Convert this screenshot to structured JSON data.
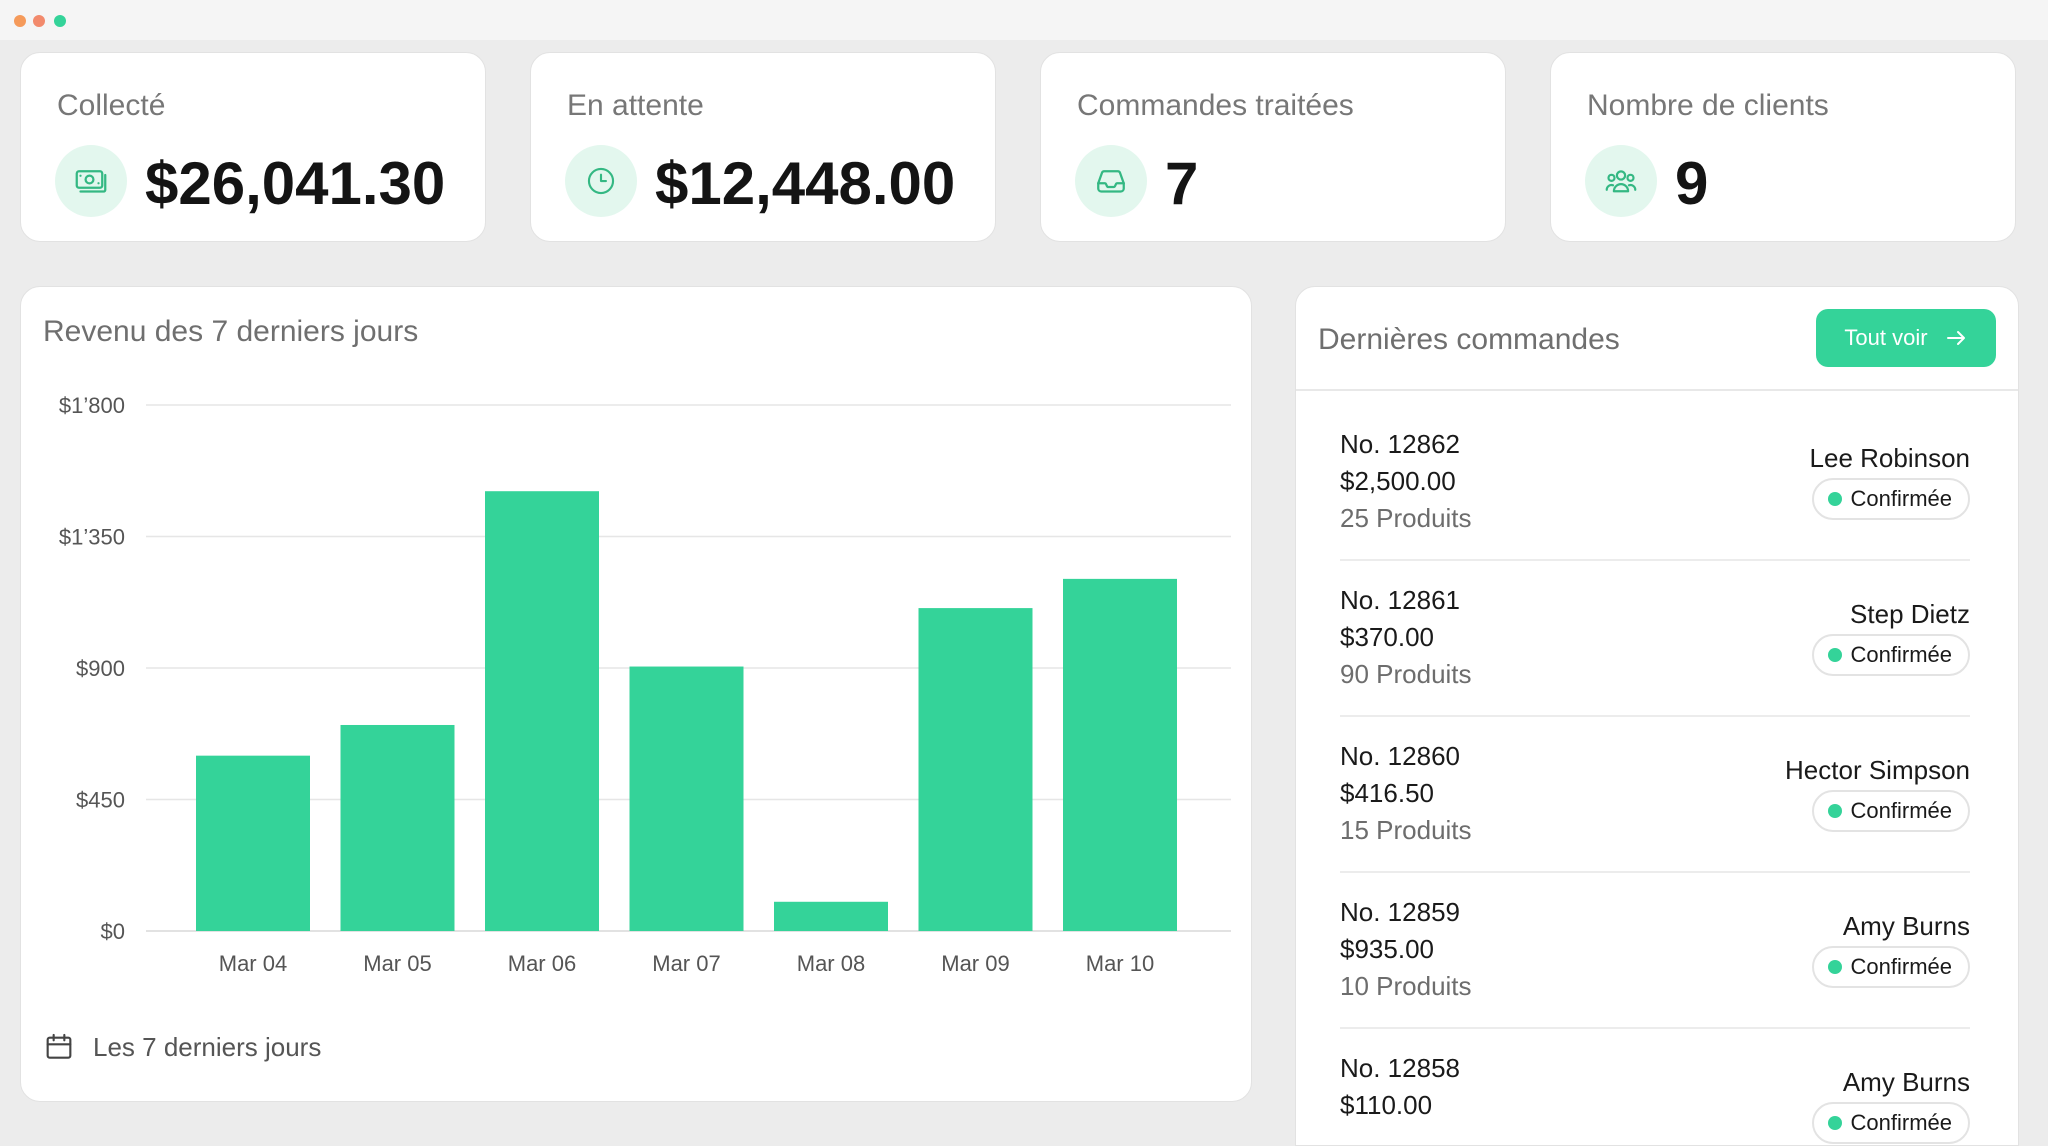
{
  "window": {
    "controls": [
      "close",
      "minimize",
      "maximize"
    ]
  },
  "stats": [
    {
      "label": "Collecté",
      "value": "$26,041.30",
      "icon": "cash-icon"
    },
    {
      "label": "En attente",
      "value": "$12,448.00",
      "icon": "clock-icon"
    },
    {
      "label": "Commandes traitées",
      "value": "7",
      "icon": "inbox-icon"
    },
    {
      "label": "Nombre de clients",
      "value": "9",
      "icon": "users-icon"
    }
  ],
  "chart": {
    "title": "Revenu des 7 derniers jours",
    "footer": "Les 7 derniers jours",
    "footer_icon": "calendar-icon"
  },
  "chart_data": {
    "type": "bar",
    "categories": [
      "Mar 04",
      "Mar 05",
      "Mar 06",
      "Mar 07",
      "Mar 08",
      "Mar 09",
      "Mar 10"
    ],
    "values": [
      600,
      705,
      1505,
      905,
      100,
      1105,
      1205
    ],
    "ylim": [
      0,
      1800
    ],
    "yticks": [
      0,
      450,
      900,
      1350,
      1800
    ],
    "ytick_labels": [
      "$0",
      "$450",
      "$900",
      "$1’350",
      "$1’800"
    ],
    "grid": true,
    "color": "#34d399"
  },
  "orders": {
    "title": "Dernières commandes",
    "view_all_label": "Tout voir",
    "items": [
      {
        "number": "No. 12862",
        "amount": "$2,500.00",
        "products": "25 Produits",
        "customer": "Lee Robinson",
        "status": "Confirmée"
      },
      {
        "number": "No. 12861",
        "amount": "$370.00",
        "products": "90 Produits",
        "customer": "Step Dietz",
        "status": "Confirmée"
      },
      {
        "number": "No. 12860",
        "amount": "$416.50",
        "products": "15 Produits",
        "customer": "Hector Simpson",
        "status": "Confirmée"
      },
      {
        "number": "No. 12859",
        "amount": "$935.00",
        "products": "10 Produits",
        "customer": "Amy Burns",
        "status": "Confirmée"
      },
      {
        "number": "No. 12858",
        "amount": "$110.00",
        "products": "",
        "customer": "Amy Burns",
        "status": "Confirmée"
      }
    ]
  },
  "colors": {
    "accent": "#34d399",
    "accent_light": "#e3f7ee",
    "background": "#ececec"
  }
}
